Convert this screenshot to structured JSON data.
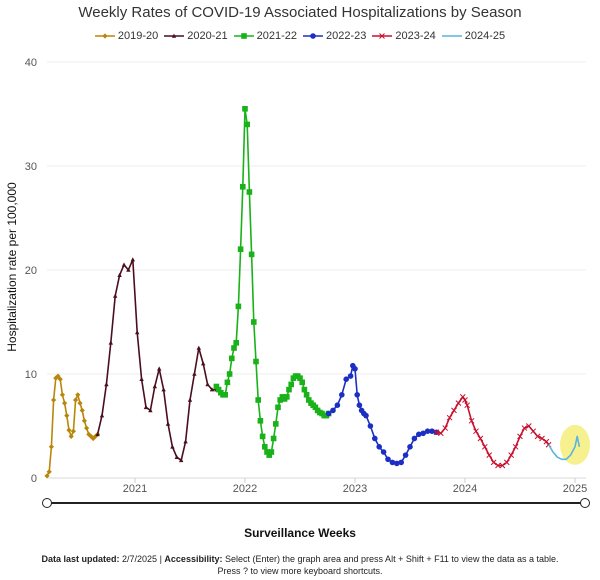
{
  "title": "Weekly Rates of COVID-19 Associated Hospitalizations by Season",
  "legend": [
    {
      "label": "2019-20",
      "color": "#b8860b",
      "marker": "diamond"
    },
    {
      "label": "2020-21",
      "color": "#4a0f1e",
      "marker": "triangle"
    },
    {
      "label": "2021-22",
      "color": "#19b219",
      "marker": "square"
    },
    {
      "label": "2022-23",
      "color": "#1b2fc4",
      "marker": "circle"
    },
    {
      "label": "2023-24",
      "color": "#c8102e",
      "marker": "cross"
    },
    {
      "label": "2024-25",
      "color": "#5bb4e0",
      "marker": "none"
    }
  ],
  "ylabel": "Hospitalization rate per 100,000",
  "xlabel": "Surveillance Weeks",
  "footer": {
    "updated_label": "Data last updated:",
    "updated_value": "2/7/2025",
    "access_label": "Accessibility:",
    "access_text": "Select (Enter) the graph area and press Alt + Shift + F11 to view the data as a table.",
    "line2": "Press ? to view more keyboard shortcuts."
  },
  "chart_data": {
    "type": "line",
    "title": "Weekly Rates of COVID-19 Associated Hospitalizations by Season",
    "xlabel": "Surveillance Weeks",
    "ylabel": "Hospitalization rate per 100,000",
    "ylim": [
      0,
      40
    ],
    "yticks": [
      0,
      10,
      20,
      30,
      40
    ],
    "xlim": [
      2020.2,
      2025.1
    ],
    "xticks": [
      "2021",
      "2022",
      "2023",
      "2024",
      "2025"
    ],
    "grid": "horizontal",
    "legend_position": "top",
    "highlight": {
      "x": 2025.0,
      "y": 3.0,
      "color": "#f5ee7a"
    },
    "series": [
      {
        "name": "2019-20",
        "color": "#b8860b",
        "marker": "diamond",
        "x": [
          2020.2,
          2020.22,
          2020.24,
          2020.26,
          2020.28,
          2020.3,
          2020.32,
          2020.34,
          2020.36,
          2020.38,
          2020.4,
          2020.42,
          2020.44,
          2020.46,
          2020.48,
          2020.5,
          2020.52,
          2020.54,
          2020.56,
          2020.58,
          2020.6,
          2020.62,
          2020.64,
          2020.66
        ],
        "y": [
          0.2,
          0.6,
          3.0,
          7.5,
          9.6,
          9.8,
          9.5,
          8.0,
          7.2,
          6.0,
          4.6,
          4.0,
          4.5,
          7.5,
          8.0,
          7.2,
          6.5,
          5.5,
          4.8,
          4.2,
          4.0,
          3.8,
          4.0,
          4.2
        ]
      },
      {
        "name": "2020-21",
        "color": "#4a0f1e",
        "marker": "triangle",
        "x": [
          2020.66,
          2020.7,
          2020.74,
          2020.78,
          2020.82,
          2020.86,
          2020.9,
          2020.94,
          2020.98,
          2021.02,
          2021.06,
          2021.1,
          2021.14,
          2021.18,
          2021.22,
          2021.26,
          2021.3,
          2021.34,
          2021.38,
          2021.42,
          2021.46,
          2021.5,
          2021.54,
          2021.58,
          2021.62,
          2021.66,
          2021.7,
          2021.74
        ],
        "y": [
          4.2,
          6.0,
          9.0,
          13.0,
          17.5,
          19.5,
          20.5,
          20.0,
          21.0,
          14.0,
          9.5,
          6.8,
          6.5,
          8.8,
          10.5,
          8.5,
          5.2,
          3.0,
          2.0,
          1.7,
          3.5,
          7.5,
          10.0,
          12.5,
          11.0,
          9.0,
          8.5,
          8.5
        ]
      },
      {
        "name": "2021-22",
        "color": "#19b219",
        "marker": "square",
        "x": [
          2021.74,
          2021.76,
          2021.78,
          2021.8,
          2021.82,
          2021.84,
          2021.86,
          2021.88,
          2021.9,
          2021.92,
          2021.94,
          2021.96,
          2021.98,
          2022.0,
          2022.02,
          2022.04,
          2022.06,
          2022.08,
          2022.1,
          2022.12,
          2022.14,
          2022.16,
          2022.18,
          2022.2,
          2022.22,
          2022.24,
          2022.26,
          2022.28,
          2022.3,
          2022.32,
          2022.34,
          2022.36,
          2022.38,
          2022.4,
          2022.42,
          2022.44,
          2022.46,
          2022.48,
          2022.5,
          2022.52,
          2022.54,
          2022.56,
          2022.58,
          2022.6,
          2022.62,
          2022.64,
          2022.66,
          2022.68,
          2022.7,
          2022.72,
          2022.74,
          2022.76
        ],
        "y": [
          8.8,
          8.5,
          8.2,
          8.0,
          8.0,
          9.2,
          10.0,
          11.5,
          12.5,
          13.0,
          16.5,
          22.0,
          28.0,
          35.5,
          34.0,
          27.5,
          21.5,
          15.0,
          11.2,
          7.5,
          5.5,
          4.0,
          3.0,
          2.5,
          2.2,
          2.5,
          3.8,
          5.2,
          6.8,
          7.5,
          7.8,
          7.6,
          7.8,
          8.5,
          9.0,
          9.6,
          9.8,
          9.8,
          9.6,
          9.2,
          8.5,
          8.0,
          7.5,
          7.2,
          7.0,
          6.8,
          6.5,
          6.3,
          6.2,
          6.0,
          6.0,
          6.2
        ]
      },
      {
        "name": "2022-23",
        "color": "#1b2fc4",
        "marker": "circle",
        "x": [
          2022.76,
          2022.8,
          2022.84,
          2022.88,
          2022.92,
          2022.96,
          2022.98,
          2023.0,
          2023.02,
          2023.04,
          2023.06,
          2023.08,
          2023.1,
          2023.14,
          2023.18,
          2023.22,
          2023.26,
          2023.3,
          2023.34,
          2023.38,
          2023.42,
          2023.46,
          2023.5,
          2023.54,
          2023.58,
          2023.62,
          2023.66,
          2023.7,
          2023.74
        ],
        "y": [
          6.2,
          6.5,
          7.0,
          8.0,
          9.5,
          9.8,
          10.8,
          10.5,
          8.0,
          7.0,
          6.5,
          6.2,
          6.0,
          5.0,
          3.8,
          3.0,
          2.5,
          1.8,
          1.5,
          1.4,
          1.5,
          2.2,
          3.0,
          3.8,
          4.2,
          4.3,
          4.5,
          4.5,
          4.4
        ]
      },
      {
        "name": "2023-24",
        "color": "#c8102e",
        "marker": "cross",
        "x": [
          2023.74,
          2023.78,
          2023.82,
          2023.86,
          2023.9,
          2023.94,
          2023.98,
          2024.0,
          2024.02,
          2024.06,
          2024.1,
          2024.14,
          2024.18,
          2024.22,
          2024.26,
          2024.3,
          2024.34,
          2024.38,
          2024.42,
          2024.46,
          2024.5,
          2024.54,
          2024.58,
          2024.62,
          2024.66,
          2024.7,
          2024.74,
          2024.76
        ],
        "y": [
          4.4,
          4.3,
          4.8,
          5.8,
          6.5,
          7.2,
          7.8,
          7.5,
          7.0,
          5.5,
          4.5,
          3.8,
          3.0,
          2.2,
          1.5,
          1.2,
          1.2,
          1.5,
          2.2,
          3.0,
          4.0,
          4.8,
          5.0,
          4.5,
          4.0,
          3.8,
          3.5,
          3.2
        ]
      },
      {
        "name": "2024-25",
        "color": "#5bb4e0",
        "marker": "none",
        "x": [
          2024.76,
          2024.8,
          2024.84,
          2024.88,
          2024.92,
          2024.96,
          2025.0,
          2025.02,
          2025.04
        ],
        "y": [
          3.2,
          2.5,
          2.0,
          1.8,
          1.8,
          2.2,
          3.0,
          4.0,
          3.0
        ]
      }
    ]
  }
}
